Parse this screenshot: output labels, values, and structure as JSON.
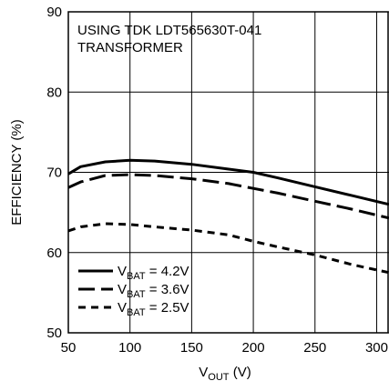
{
  "chart_data": {
    "type": "line",
    "annotation": [
      "USING TDK LDT565630T-041",
      "TRANSFORMER"
    ],
    "xlabel": {
      "main": "V",
      "sub": "OUT",
      "tail": " (V)"
    },
    "ylabel": "EFFICIENCY (%)",
    "xlim": [
      50,
      310
    ],
    "ylim": [
      50,
      90
    ],
    "xticks": [
      "50",
      "100",
      "150",
      "200",
      "250",
      "300"
    ],
    "yticks": [
      "50",
      "60",
      "70",
      "80",
      "90"
    ],
    "grid": true,
    "legend_position": "bottom-left",
    "series": [
      {
        "legend": {
          "main": "V",
          "sub": "BAT",
          "tail": " = 4.2V"
        },
        "dash": "solid",
        "x": [
          50,
          60,
          80,
          100,
          120,
          150,
          180,
          200,
          220,
          250,
          280,
          310
        ],
        "y": [
          69.8,
          70.7,
          71.3,
          71.5,
          71.4,
          71.0,
          70.4,
          70.0,
          69.3,
          68.2,
          67.1,
          66.0
        ]
      },
      {
        "legend": {
          "main": "V",
          "sub": "BAT",
          "tail": " = 3.6V"
        },
        "dash": "long",
        "x": [
          50,
          60,
          80,
          100,
          120,
          150,
          180,
          200,
          220,
          250,
          280,
          310
        ],
        "y": [
          68.1,
          68.8,
          69.6,
          69.7,
          69.6,
          69.2,
          68.6,
          68.0,
          67.4,
          66.4,
          65.4,
          64.3
        ]
      },
      {
        "legend": {
          "main": "V",
          "sub": "BAT",
          "tail": " = 2.5V"
        },
        "dash": "short",
        "x": [
          50,
          60,
          80,
          100,
          120,
          150,
          180,
          200,
          220,
          250,
          280,
          310
        ],
        "y": [
          62.7,
          63.2,
          63.6,
          63.5,
          63.2,
          62.8,
          62.2,
          61.4,
          60.7,
          59.7,
          58.5,
          57.5
        ]
      }
    ]
  }
}
